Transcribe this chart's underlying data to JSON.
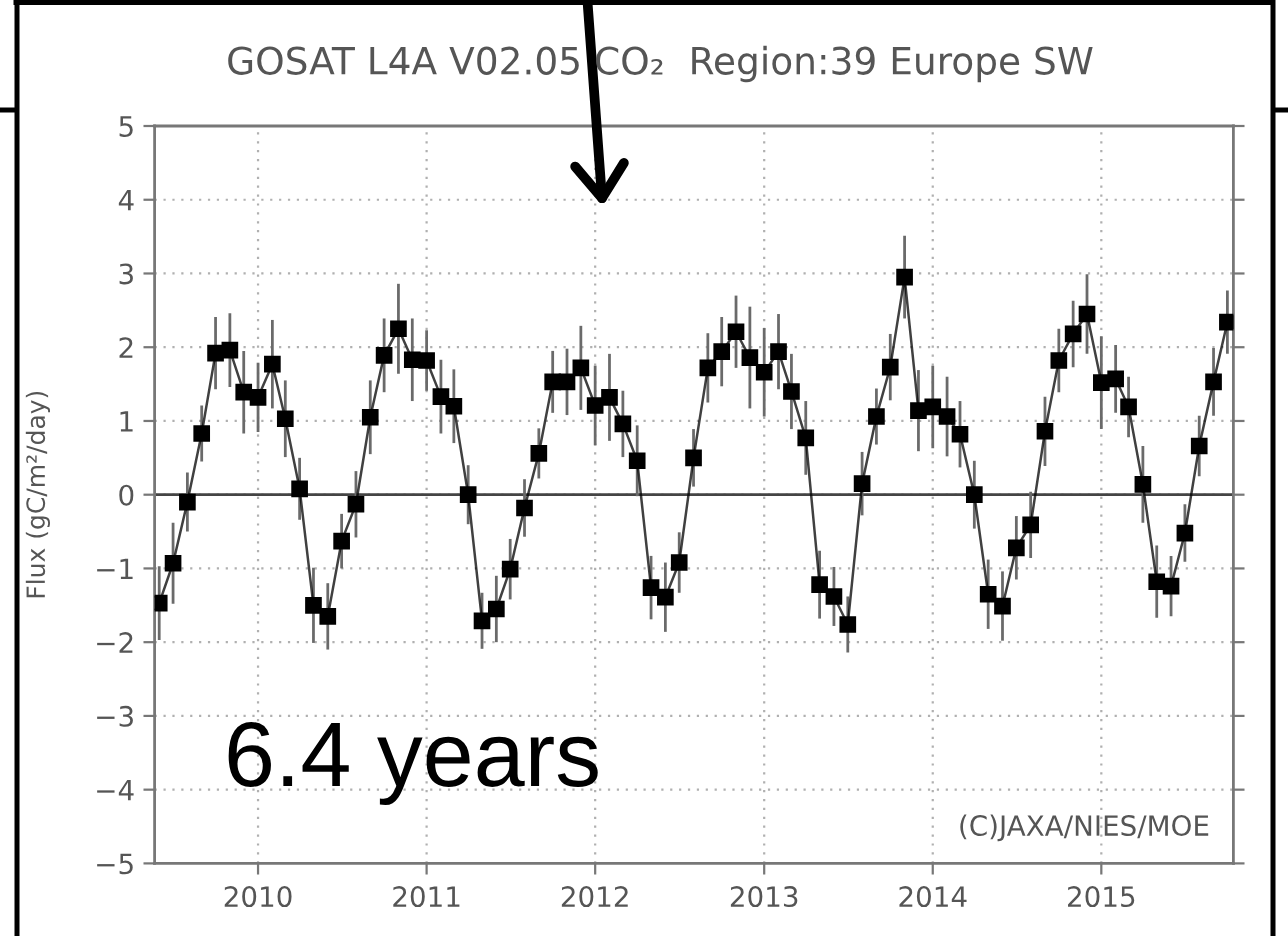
{
  "chart_data": {
    "type": "line",
    "title": "GOSAT L4A V02.05 CO₂  Region:39 Europe SW",
    "ylabel": "Flux (gC/m²/day)",
    "annotations": [
      "6.4 years",
      "(C)JAXA/NIES/MOE"
    ],
    "x": [
      "2009-06",
      "2009-07",
      "2009-08",
      "2009-09",
      "2009-10",
      "2009-11",
      "2009-12",
      "2010-01",
      "2010-02",
      "2010-03",
      "2010-04",
      "2010-05",
      "2010-06",
      "2010-07",
      "2010-08",
      "2010-09",
      "2010-10",
      "2010-11",
      "2010-12",
      "2011-01",
      "2011-02",
      "2011-03",
      "2011-04",
      "2011-05",
      "2011-06",
      "2011-07",
      "2011-08",
      "2011-09",
      "2011-10",
      "2011-11",
      "2011-12",
      "2012-01",
      "2012-02",
      "2012-03",
      "2012-04",
      "2012-05",
      "2012-06",
      "2012-07",
      "2012-08",
      "2012-09",
      "2012-10",
      "2012-11",
      "2012-12",
      "2013-01",
      "2013-02",
      "2013-03",
      "2013-04",
      "2013-05",
      "2013-06",
      "2013-07",
      "2013-08",
      "2013-09",
      "2013-10",
      "2013-11",
      "2013-12",
      "2014-01",
      "2014-02",
      "2014-03",
      "2014-04",
      "2014-05",
      "2014-06",
      "2014-07",
      "2014-08",
      "2014-09",
      "2014-10",
      "2014-11",
      "2014-12",
      "2015-01",
      "2015-02",
      "2015-03",
      "2015-04",
      "2015-05",
      "2015-06",
      "2015-07",
      "2015-08",
      "2015-09",
      "2015-10"
    ],
    "values": [
      -1.47,
      -0.93,
      -0.1,
      0.83,
      1.92,
      1.96,
      1.39,
      1.32,
      1.77,
      1.03,
      0.08,
      -1.5,
      -1.65,
      -0.63,
      -0.13,
      1.05,
      1.89,
      2.25,
      1.83,
      1.82,
      1.33,
      1.2,
      0.0,
      -1.71,
      -1.55,
      -1.01,
      -0.18,
      0.56,
      1.53,
      1.53,
      1.72,
      1.21,
      1.32,
      0.96,
      0.46,
      -1.26,
      -1.39,
      -0.92,
      0.5,
      1.72,
      1.94,
      2.21,
      1.86,
      1.66,
      1.94,
      1.4,
      0.77,
      -1.22,
      -1.38,
      -1.76,
      0.15,
      1.06,
      1.73,
      2.95,
      1.14,
      1.19,
      1.06,
      0.82,
      0.0,
      -1.35,
      -1.51,
      -0.72,
      -0.41,
      0.86,
      1.82,
      2.18,
      2.45,
      1.52,
      1.57,
      1.19,
      0.14,
      -1.18,
      -1.24,
      -0.52,
      0.66,
      1.53,
      2.34
    ],
    "errors": [
      0.5,
      0.55,
      0.4,
      0.38,
      0.49,
      0.5,
      0.56,
      0.47,
      0.6,
      0.52,
      0.42,
      0.51,
      0.45,
      0.37,
      0.45,
      0.5,
      0.5,
      0.61,
      0.56,
      0.41,
      0.5,
      0.5,
      0.4,
      0.38,
      0.45,
      0.41,
      0.39,
      0.34,
      0.42,
      0.45,
      0.57,
      0.54,
      0.59,
      0.45,
      0.48,
      0.43,
      0.47,
      0.41,
      0.39,
      0.47,
      0.47,
      0.49,
      0.69,
      0.6,
      0.51,
      0.51,
      0.5,
      0.46,
      0.4,
      0.38,
      0.43,
      0.38,
      0.45,
      0.56,
      0.55,
      0.56,
      0.54,
      0.45,
      0.46,
      0.47,
      0.47,
      0.43,
      0.45,
      0.47,
      0.43,
      0.45,
      0.54,
      0.63,
      0.46,
      0.41,
      0.52,
      0.49,
      0.41,
      0.39,
      0.41,
      0.46,
      0.43
    ],
    "color": "#000000",
    "marker": "square",
    "line_style": "solid",
    "xlim": [
      "2009-05-22",
      "2015-10-14"
    ],
    "xticks": [
      "2010",
      "2011",
      "2012",
      "2013",
      "2014",
      "2015"
    ],
    "ylim": [
      -5,
      5
    ],
    "yticks": [
      -5,
      -4,
      -3,
      -2,
      -1,
      0,
      1,
      2,
      3,
      4,
      5
    ],
    "ref_lines": [
      {
        "axis": "y",
        "value": 0,
        "color": "#444444"
      }
    ],
    "grid": true
  }
}
